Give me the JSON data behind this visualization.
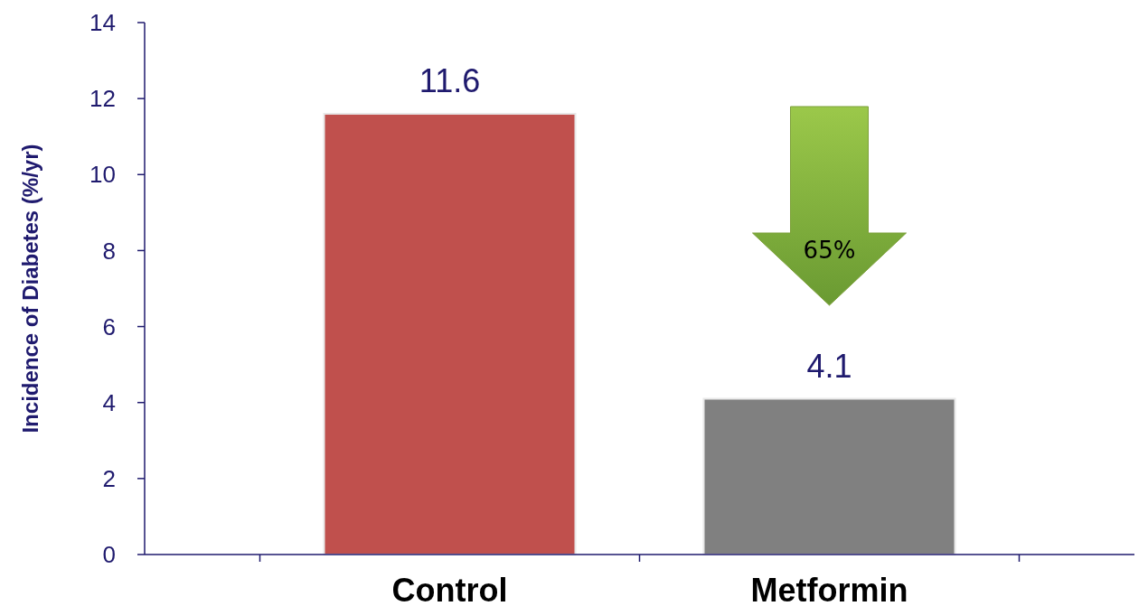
{
  "chart_data": {
    "type": "bar",
    "ylabel": "Incidence of Diabetes (%/yr)",
    "categories": [
      "Control",
      "Metformin"
    ],
    "values": [
      11.6,
      4.1
    ],
    "colors": [
      "#c0504d",
      "#808080"
    ],
    "ylim": [
      0,
      14
    ],
    "yticks": [
      0,
      2,
      4,
      6,
      8,
      10,
      12,
      14
    ],
    "data_labels": true,
    "annotations": [
      "65%"
    ]
  }
}
